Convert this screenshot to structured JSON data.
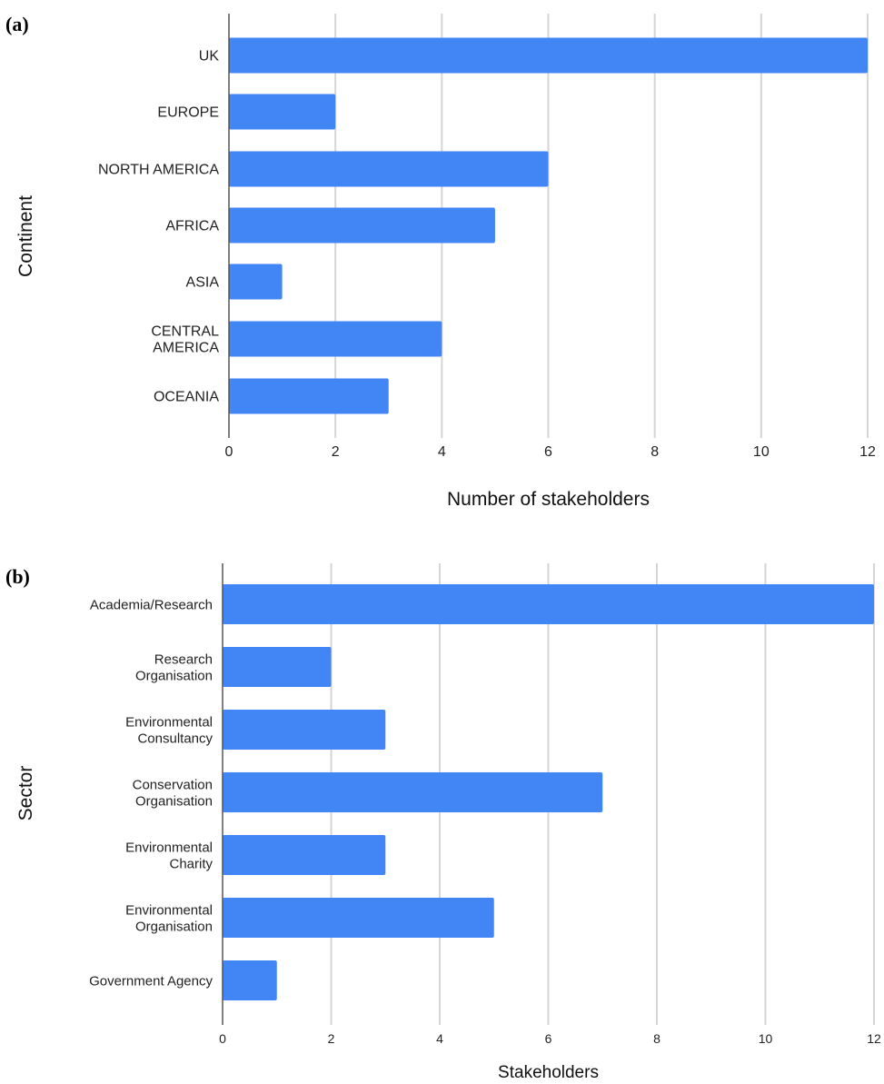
{
  "chart_data": [
    {
      "type": "bar",
      "orientation": "horizontal",
      "panel_label": "(a)",
      "categories": [
        "UK",
        "EUROPE",
        "NORTH AMERICA",
        "AFRICA",
        "ASIA",
        "CENTRAL AMERICA",
        "OCEANIA"
      ],
      "category_lines": [
        [
          "UK"
        ],
        [
          "EUROPE"
        ],
        [
          "NORTH AMERICA"
        ],
        [
          "AFRICA"
        ],
        [
          "ASIA"
        ],
        [
          "CENTRAL",
          "AMERICA"
        ],
        [
          "OCEANIA"
        ]
      ],
      "values": [
        12,
        2,
        6,
        5,
        1,
        4,
        3
      ],
      "xlabel": "Number of stakeholders",
      "ylabel": "Continent",
      "xlim": [
        0,
        12
      ],
      "xticks": [
        0,
        2,
        4,
        6,
        8,
        10,
        12
      ],
      "grid": "vertical",
      "bar_color": "#4285f4"
    },
    {
      "type": "bar",
      "orientation": "horizontal",
      "panel_label": "(b)",
      "categories": [
        "Academia/Research",
        "Research Organisation",
        "Environmental Consultancy",
        "Conservation Organisation",
        "Environmental Charity",
        "Environmental Organisation",
        "Government Agency"
      ],
      "category_lines": [
        [
          "Academia/Research"
        ],
        [
          "Research",
          "Organisation"
        ],
        [
          "Environmental",
          "Consultancy"
        ],
        [
          "Conservation",
          "Organisation"
        ],
        [
          "Environmental",
          "Charity"
        ],
        [
          "Environmental",
          "Organisation"
        ],
        [
          "Government Agency"
        ]
      ],
      "values": [
        12,
        2,
        3,
        7,
        3,
        5,
        1
      ],
      "xlabel": "Stakeholders",
      "ylabel": "Sector",
      "xlim": [
        0,
        12
      ],
      "xticks": [
        0,
        2,
        4,
        6,
        8,
        10,
        12
      ],
      "grid": "vertical",
      "bar_color": "#4285f4"
    }
  ]
}
